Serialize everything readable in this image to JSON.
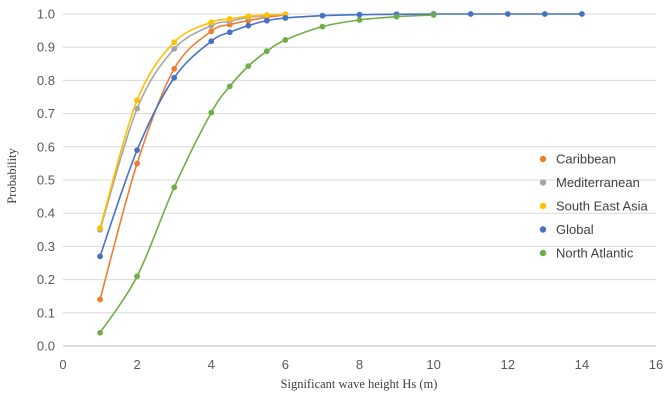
{
  "chart_data": {
    "type": "line",
    "title": "",
    "xlabel": "Significant wave height Hs (m)",
    "ylabel": "Probability",
    "xlim": [
      0,
      16
    ],
    "ylim": [
      0.0,
      1.0
    ],
    "x_ticks": [
      "0",
      "2",
      "4",
      "6",
      "8",
      "10",
      "12",
      "14",
      "16"
    ],
    "y_ticks": [
      "0.0",
      "0.1",
      "0.2",
      "0.3",
      "0.4",
      "0.5",
      "0.6",
      "0.7",
      "0.8",
      "0.9",
      "1.0"
    ],
    "grid": "horizontal",
    "legend_position": "right",
    "series": [
      {
        "name": "Caribbean",
        "color": "#ed7d31",
        "x": [
          1,
          2,
          3,
          4,
          4.5,
          5,
          5.5,
          6
        ],
        "y": [
          0.14,
          0.55,
          0.835,
          0.948,
          0.968,
          0.98,
          0.99,
          0.997
        ]
      },
      {
        "name": "Mediterranean",
        "color": "#a5a5a5",
        "x": [
          1,
          2,
          3,
          4,
          4.5,
          5,
          5.5,
          6
        ],
        "y": [
          0.35,
          0.715,
          0.895,
          0.965,
          0.978,
          0.99,
          0.995,
          0.998
        ]
      },
      {
        "name": "South East Asia",
        "color": "#ffc000",
        "x": [
          1,
          2,
          3,
          4,
          4.5,
          5,
          5.5,
          6
        ],
        "y": [
          0.355,
          0.74,
          0.915,
          0.975,
          0.985,
          0.993,
          0.997,
          0.999
        ]
      },
      {
        "name": "Global",
        "color": "#4472c4",
        "x": [
          1,
          2,
          3,
          4,
          4.5,
          5,
          5.5,
          6,
          7,
          8,
          9,
          10,
          11,
          12,
          13,
          14
        ],
        "y": [
          0.27,
          0.59,
          0.808,
          0.918,
          0.945,
          0.965,
          0.98,
          0.988,
          0.995,
          0.998,
          0.999,
          1.0,
          1.0,
          1.0,
          1.0,
          1.0
        ]
      },
      {
        "name": "North Atlantic",
        "color": "#70ad47",
        "x": [
          1,
          2,
          3,
          4,
          4.5,
          5,
          5.5,
          6,
          7,
          8,
          9,
          10
        ],
        "y": [
          0.04,
          0.21,
          0.478,
          0.703,
          0.782,
          0.843,
          0.888,
          0.922,
          0.962,
          0.982,
          0.992,
          0.997
        ]
      }
    ]
  }
}
